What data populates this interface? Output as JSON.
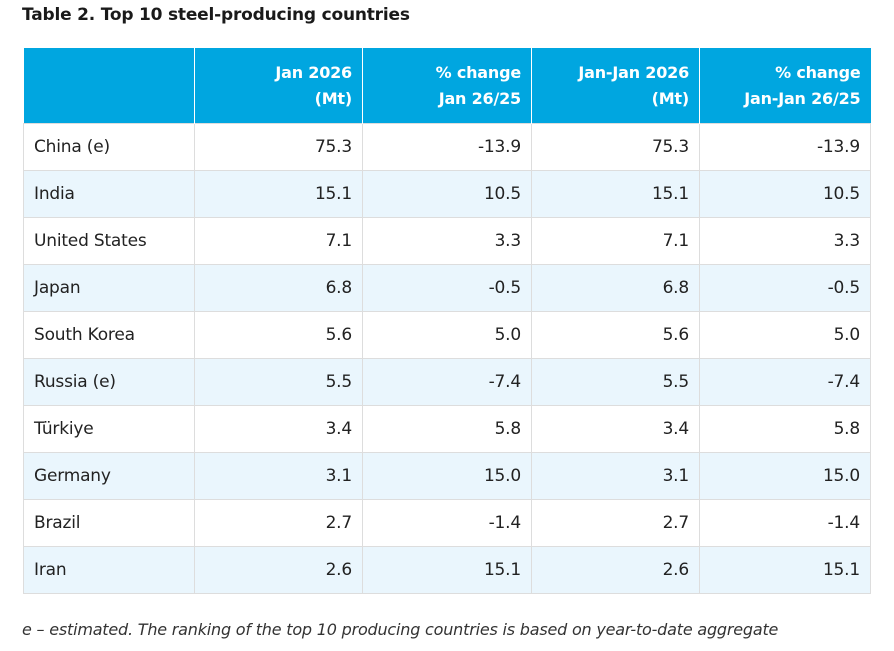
{
  "caption": "Table 2. Top 10 steel-producing countries",
  "headers": [
    {
      "line1": "",
      "line2": ""
    },
    {
      "line1": "Jan 2026",
      "line2": "(Mt)"
    },
    {
      "line1": "% change",
      "line2": "Jan 26/25"
    },
    {
      "line1": "Jan-Jan 2026",
      "line2": "(Mt)"
    },
    {
      "line1": "% change",
      "line2": "Jan-Jan 26/25"
    }
  ],
  "rows": [
    {
      "country": "China (e)",
      "jan": "75.3",
      "chg": "-13.9",
      "ytd": "75.3",
      "ytd_chg": "-13.9"
    },
    {
      "country": "India",
      "jan": "15.1",
      "chg": "10.5",
      "ytd": "15.1",
      "ytd_chg": "10.5"
    },
    {
      "country": "United States",
      "jan": "7.1",
      "chg": "3.3",
      "ytd": "7.1",
      "ytd_chg": "3.3"
    },
    {
      "country": "Japan",
      "jan": "6.8",
      "chg": "-0.5",
      "ytd": "6.8",
      "ytd_chg": "-0.5"
    },
    {
      "country": "South Korea",
      "jan": "5.6",
      "chg": "5.0",
      "ytd": "5.6",
      "ytd_chg": "5.0"
    },
    {
      "country": "Russia (e)",
      "jan": "5.5",
      "chg": "-7.4",
      "ytd": "5.5",
      "ytd_chg": "-7.4"
    },
    {
      "country": "Türkiye",
      "jan": "3.4",
      "chg": "5.8",
      "ytd": "3.4",
      "ytd_chg": "5.8"
    },
    {
      "country": "Germany",
      "jan": "3.1",
      "chg": "15.0",
      "ytd": "3.1",
      "ytd_chg": "15.0"
    },
    {
      "country": "Brazil",
      "jan": "2.7",
      "chg": "-1.4",
      "ytd": "2.7",
      "ytd_chg": "-1.4"
    },
    {
      "country": "Iran",
      "jan": "2.6",
      "chg": "15.1",
      "ytd": "2.6",
      "ytd_chg": "15.1"
    }
  ],
  "footnote": "e – estimated. The ranking of the top 10 producing countries is based on year-to-date aggregate",
  "colors": {
    "header_bg": "#00a6e0",
    "alt_row_bg": "#eaf6fd"
  }
}
